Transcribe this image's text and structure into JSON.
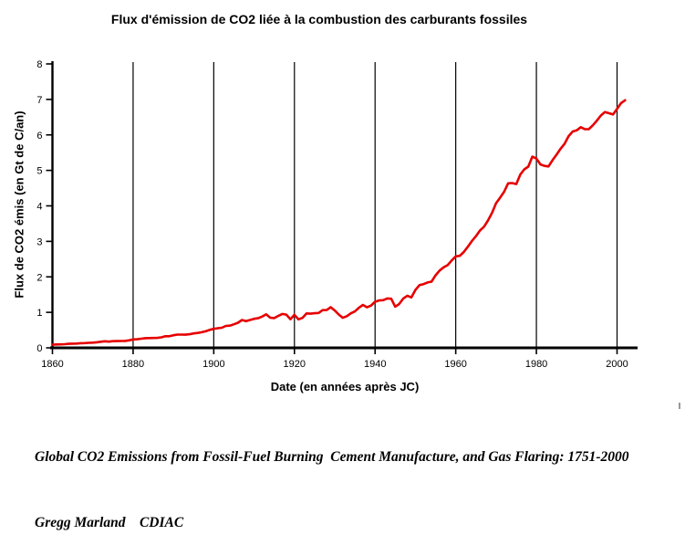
{
  "title": "Flux d'émission de CO2 liée à la combustion des carburants fossiles",
  "chart_data": {
    "type": "line",
    "title": "Flux d'émission de CO2 liée à la combustion des carburants fossiles",
    "xlabel": "Date (en années après JC)",
    "ylabel": "Flux de CO2 émis (en Gt de C/an)",
    "xlim": [
      1860,
      2005
    ],
    "ylim": [
      0,
      8
    ],
    "x_ticks": [
      1860,
      1880,
      1900,
      1920,
      1940,
      1960,
      1980,
      2000
    ],
    "y_ticks": [
      0,
      1,
      2,
      3,
      4,
      5,
      6,
      7,
      8
    ],
    "grid": "vertical-black-lines-at-x-ticks",
    "legend": "none",
    "line_color": "#e60000",
    "axis_color": "#000000",
    "series": [
      {
        "name": "Global CO2 emissions from fossil fuels (Gt C/yr)",
        "color": "#e60000",
        "x_start": 1860,
        "x_step": 1,
        "x_end": 2002,
        "values": [
          0.091,
          0.095,
          0.097,
          0.104,
          0.112,
          0.119,
          0.122,
          0.13,
          0.135,
          0.142,
          0.147,
          0.156,
          0.173,
          0.184,
          0.174,
          0.188,
          0.191,
          0.194,
          0.196,
          0.21,
          0.236,
          0.243,
          0.256,
          0.272,
          0.275,
          0.277,
          0.281,
          0.295,
          0.327,
          0.327,
          0.356,
          0.372,
          0.374,
          0.37,
          0.383,
          0.406,
          0.419,
          0.44,
          0.465,
          0.507,
          0.534,
          0.552,
          0.566,
          0.617,
          0.624,
          0.663,
          0.707,
          0.784,
          0.75,
          0.785,
          0.819,
          0.836,
          0.879,
          0.943,
          0.85,
          0.838,
          0.901,
          0.955,
          0.936,
          0.806,
          0.932,
          0.803,
          0.845,
          0.97,
          0.963,
          0.975,
          0.983,
          1.062,
          1.065,
          1.145,
          1.053,
          0.94,
          0.847,
          0.893,
          0.973,
          1.027,
          1.13,
          1.209,
          1.142,
          1.192,
          1.299,
          1.334,
          1.342,
          1.391,
          1.383,
          1.16,
          1.238,
          1.392,
          1.469,
          1.419,
          1.63,
          1.767,
          1.795,
          1.841,
          1.865,
          2.043,
          2.178,
          2.27,
          2.33,
          2.462,
          2.577,
          2.594,
          2.7,
          2.848,
          3.008,
          3.145,
          3.305,
          3.411,
          3.588,
          3.8,
          4.076,
          4.231,
          4.399,
          4.635,
          4.644,
          4.615,
          4.883,
          5.029,
          5.105,
          5.387,
          5.332,
          5.168,
          5.127,
          5.11,
          5.29,
          5.444,
          5.61,
          5.753,
          5.964,
          6.097,
          6.127,
          6.217,
          6.164,
          6.162,
          6.272,
          6.402,
          6.547,
          6.644,
          6.611,
          6.576,
          6.735,
          6.896,
          6.975
        ]
      }
    ]
  },
  "caption": {
    "line1": "Global CO2 Emissions from Fossil-Fuel Burning  Cement Manufacture, and Gas Flaring: 1751-2000",
    "line2": "Gregg Marland    CDIAC"
  }
}
